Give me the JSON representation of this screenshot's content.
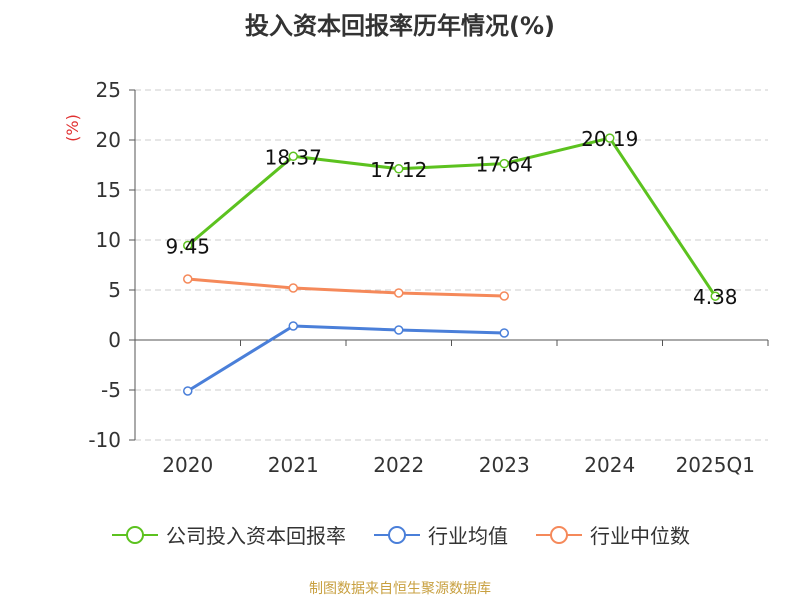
{
  "title": "投入资本回报率历年情况(%)",
  "source": "制图数据来自恒生聚源数据库",
  "chart_data": {
    "type": "line",
    "categories": [
      "2020",
      "2021",
      "2022",
      "2023",
      "2024",
      "2025Q1"
    ],
    "ylabel": "(%)",
    "ylim": [
      -10,
      25
    ],
    "yticks": [
      "25",
      "20",
      "15",
      "10",
      "5",
      "0",
      "-5",
      "-10"
    ],
    "grid": true,
    "legend_position": "bottom",
    "series": [
      {
        "name": "公司投入资本回报率",
        "color": "#5cc21f",
        "values": [
          9.45,
          18.37,
          17.12,
          17.64,
          20.19,
          4.38
        ],
        "labels": [
          "9.45",
          "18.37",
          "17.12",
          "17.64",
          "20.19",
          "4.38"
        ]
      },
      {
        "name": "行业均值",
        "color": "#4a7fd9",
        "values": [
          -5.1,
          1.4,
          1.0,
          0.7,
          null,
          null
        ]
      },
      {
        "name": "行业中位数",
        "color": "#f5895a",
        "values": [
          6.1,
          5.2,
          4.7,
          4.4,
          null,
          null
        ]
      }
    ]
  }
}
